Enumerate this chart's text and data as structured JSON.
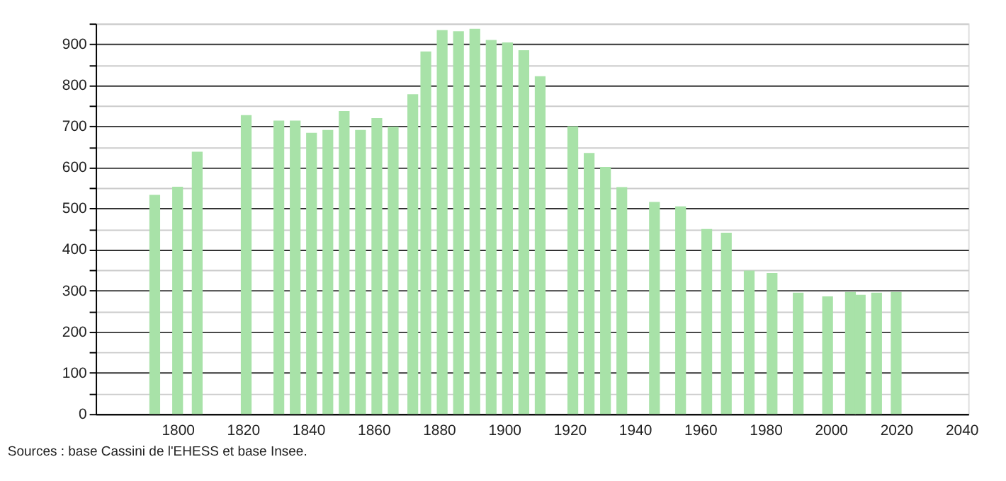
{
  "chart_data": {
    "type": "bar",
    "x": [
      1793,
      1800,
      1806,
      1821,
      1831,
      1836,
      1841,
      1846,
      1851,
      1856,
      1861,
      1866,
      1872,
      1876,
      1881,
      1886,
      1891,
      1896,
      1901,
      1906,
      1911,
      1921,
      1926,
      1931,
      1936,
      1946,
      1954,
      1962,
      1968,
      1975,
      1982,
      1990,
      1999,
      2006,
      2009,
      2014,
      2020
    ],
    "values": [
      533,
      553,
      638,
      727,
      714,
      714,
      684,
      691,
      737,
      691,
      720,
      699,
      778,
      882,
      934,
      931,
      937,
      910,
      904,
      885,
      822,
      700,
      635,
      601,
      552,
      516,
      505,
      450,
      441,
      349,
      343,
      295,
      286,
      297,
      290,
      295,
      297
    ],
    "color": "#a8e2a8",
    "xlim": [
      1777,
      2040
    ],
    "xticks": [
      1800,
      1820,
      1840,
      1860,
      1880,
      1900,
      1920,
      1940,
      1960,
      1980,
      2000,
      2020,
      2040
    ],
    "ylim": [
      0,
      950
    ],
    "yticks": [
      0,
      {
        "value": 50,
        "label": null
      },
      100,
      {
        "value": 150,
        "label": null
      },
      200,
      {
        "value": 250,
        "label": null
      },
      300,
      {
        "value": 350,
        "label": null
      },
      400,
      {
        "value": 450,
        "label": null
      },
      500,
      {
        "value": 550,
        "label": null
      },
      600,
      {
        "value": 650,
        "label": null
      },
      700,
      {
        "value": 750,
        "label": null
      },
      800,
      {
        "value": 850,
        "label": null
      },
      900,
      {
        "value": 950,
        "label": null
      }
    ],
    "grid": "y",
    "annotations": [
      "Sources : base Cassini de l'EHESS et base Insee."
    ]
  }
}
